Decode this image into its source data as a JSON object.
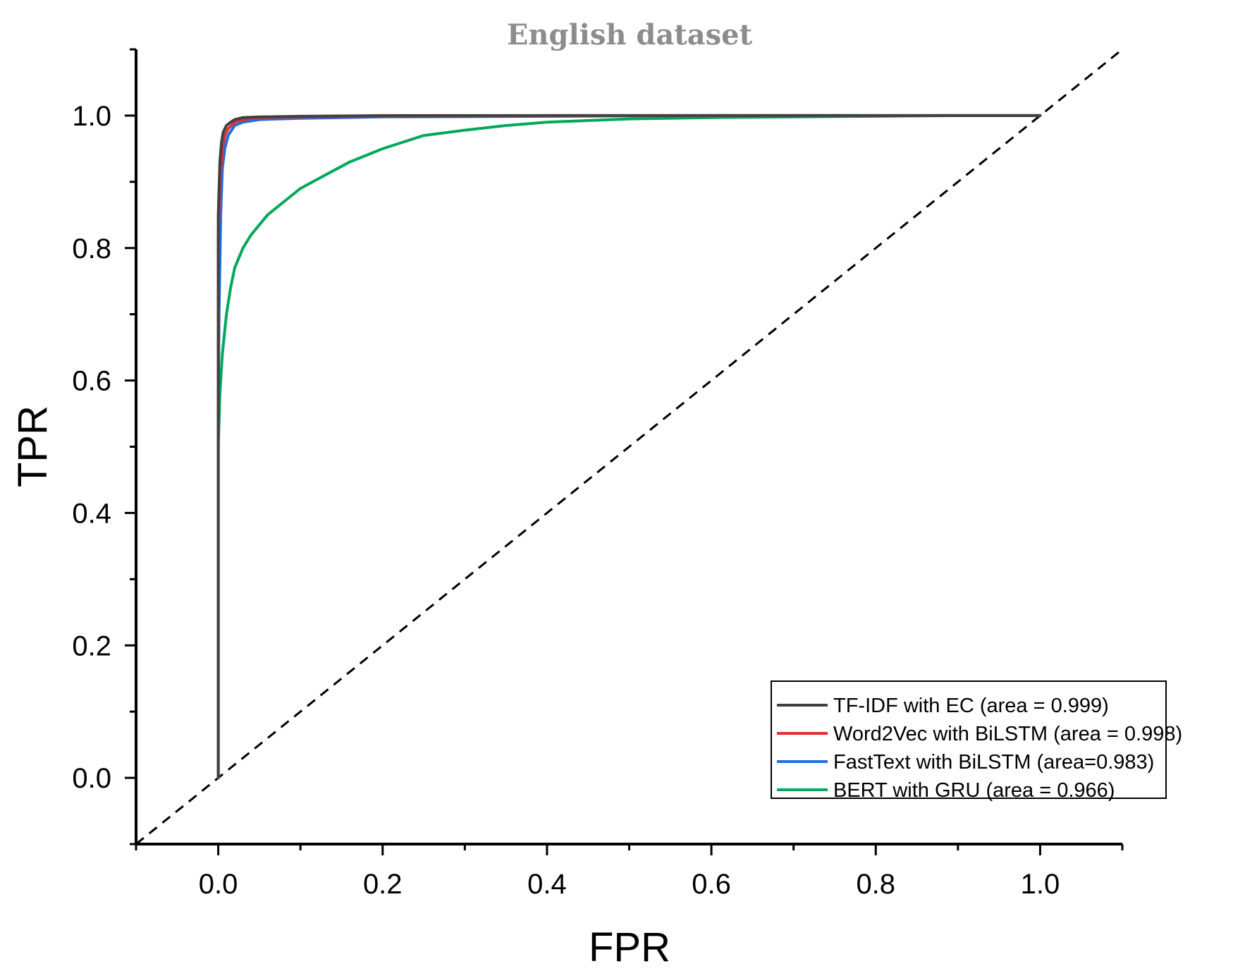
{
  "chart_data": {
    "type": "line",
    "title": "English dataset",
    "xlabel": "FPR",
    "ylabel": "TPR",
    "xlim": [
      -0.1,
      1.1
    ],
    "ylim": [
      -0.1,
      1.1
    ],
    "xticks": [
      "0.0",
      "0.2",
      "0.4",
      "0.6",
      "0.8",
      "1.0"
    ],
    "yticks": [
      "0.0",
      "0.2",
      "0.4",
      "0.6",
      "0.8",
      "1.0"
    ],
    "grid": false,
    "legend_position": "bottom-right",
    "reference_line": {
      "style": "dashed",
      "color": "#000000",
      "x": [
        -0.1,
        1.1
      ],
      "y": [
        -0.1,
        1.1
      ]
    },
    "series": [
      {
        "name": "TF-IDF with EC (area = 0.999)",
        "color": "#404040",
        "x": [
          0,
          0,
          0.002,
          0.004,
          0.006,
          0.01,
          0.015,
          0.02,
          0.03,
          0.05,
          0.1,
          0.2,
          0.4,
          0.6,
          0.8,
          1.0
        ],
        "y": [
          0,
          0.85,
          0.93,
          0.96,
          0.975,
          0.985,
          0.99,
          0.994,
          0.997,
          0.998,
          0.999,
          1.0,
          1.0,
          1.0,
          1.0,
          1.0
        ]
      },
      {
        "name": "Word2Vec with BiLSTM (area = 0.998)",
        "color": "#e03030",
        "x": [
          0,
          0,
          0.002,
          0.005,
          0.008,
          0.012,
          0.02,
          0.03,
          0.05,
          0.1,
          0.2,
          0.4,
          0.6,
          0.72,
          0.8,
          1.0
        ],
        "y": [
          0,
          0.82,
          0.9,
          0.95,
          0.97,
          0.98,
          0.99,
          0.994,
          0.997,
          0.998,
          0.999,
          1.0,
          1.0,
          1.0,
          1.0,
          1.0
        ]
      },
      {
        "name": "FastText with BiLSTM (area=0.983)",
        "color": "#1f6fe0",
        "x": [
          0,
          0,
          0.001,
          0.003,
          0.005,
          0.008,
          0.012,
          0.02,
          0.03,
          0.05,
          0.1,
          0.2,
          0.4,
          0.6,
          0.78
        ],
        "y": [
          0,
          0.55,
          0.7,
          0.85,
          0.92,
          0.95,
          0.97,
          0.985,
          0.99,
          0.994,
          0.996,
          0.998,
          0.999,
          1.0,
          1.0
        ]
      },
      {
        "name": "BERT with GRU (area = 0.966)",
        "color": "#00a859",
        "x": [
          0,
          0,
          0.002,
          0.005,
          0.01,
          0.015,
          0.02,
          0.03,
          0.04,
          0.06,
          0.08,
          0.1,
          0.13,
          0.16,
          0.2,
          0.25,
          0.3,
          0.35,
          0.4,
          0.5,
          0.6,
          0.7,
          0.8,
          0.9,
          1.0
        ],
        "y": [
          0,
          0.5,
          0.58,
          0.64,
          0.7,
          0.74,
          0.77,
          0.8,
          0.82,
          0.85,
          0.87,
          0.89,
          0.91,
          0.93,
          0.95,
          0.97,
          0.978,
          0.985,
          0.99,
          0.995,
          0.997,
          0.998,
          0.999,
          1.0,
          1.0
        ]
      }
    ]
  }
}
